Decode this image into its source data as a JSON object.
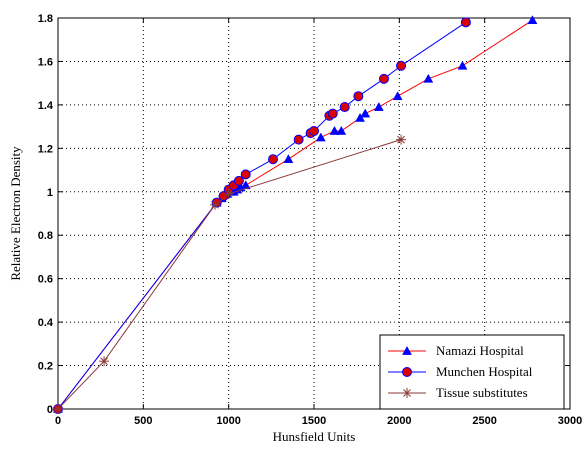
{
  "chart_data": {
    "type": "line",
    "title": "",
    "xlabel": "Hunsfield Units",
    "ylabel": "Relative Electron Density",
    "xlim": [
      0,
      3000
    ],
    "ylim": [
      0,
      1.8
    ],
    "xticks": [
      0,
      500,
      1000,
      1500,
      2000,
      2500,
      3000
    ],
    "yticks": [
      0,
      0.2,
      0.4,
      0.6,
      0.8,
      1,
      1.2,
      1.4,
      1.6,
      1.8
    ],
    "grid": true,
    "legend_position": "bottom-right",
    "series": [
      {
        "name": "Namazi Hospital",
        "color": "#ff0000",
        "marker": "triangle",
        "marker_color": "#0000ff",
        "x": [
          0,
          930,
          960,
          990,
          1010,
          1030,
          1050,
          1070,
          1100,
          1350,
          1540,
          1620,
          1660,
          1770,
          1800,
          1880,
          1990,
          2170,
          2370,
          2780
        ],
        "y": [
          0,
          0.95,
          0.97,
          0.99,
          1.0,
          1.0,
          1.01,
          1.02,
          1.03,
          1.15,
          1.25,
          1.28,
          1.28,
          1.34,
          1.36,
          1.39,
          1.44,
          1.52,
          1.58,
          1.79
        ]
      },
      {
        "name": "Munchen Hospital",
        "color": "#0000ff",
        "marker": "circle",
        "marker_color": "#dd0000",
        "x": [
          0,
          930,
          970,
          1000,
          1030,
          1060,
          1100,
          1260,
          1410,
          1480,
          1500,
          1590,
          1610,
          1680,
          1760,
          1910,
          2010,
          2390
        ],
        "y": [
          0,
          0.95,
          0.98,
          1.01,
          1.03,
          1.05,
          1.08,
          1.15,
          1.24,
          1.27,
          1.28,
          1.35,
          1.36,
          1.39,
          1.44,
          1.52,
          1.58,
          1.78
        ]
      },
      {
        "name": "Tissue substitutes",
        "color": "#8b3a3a",
        "marker": "asterisk",
        "marker_color": "#8b3a3a",
        "x": [
          0,
          270,
          920,
          1000,
          2010
        ],
        "y": [
          0,
          0.22,
          0.94,
          0.99,
          1.24
        ]
      }
    ]
  }
}
